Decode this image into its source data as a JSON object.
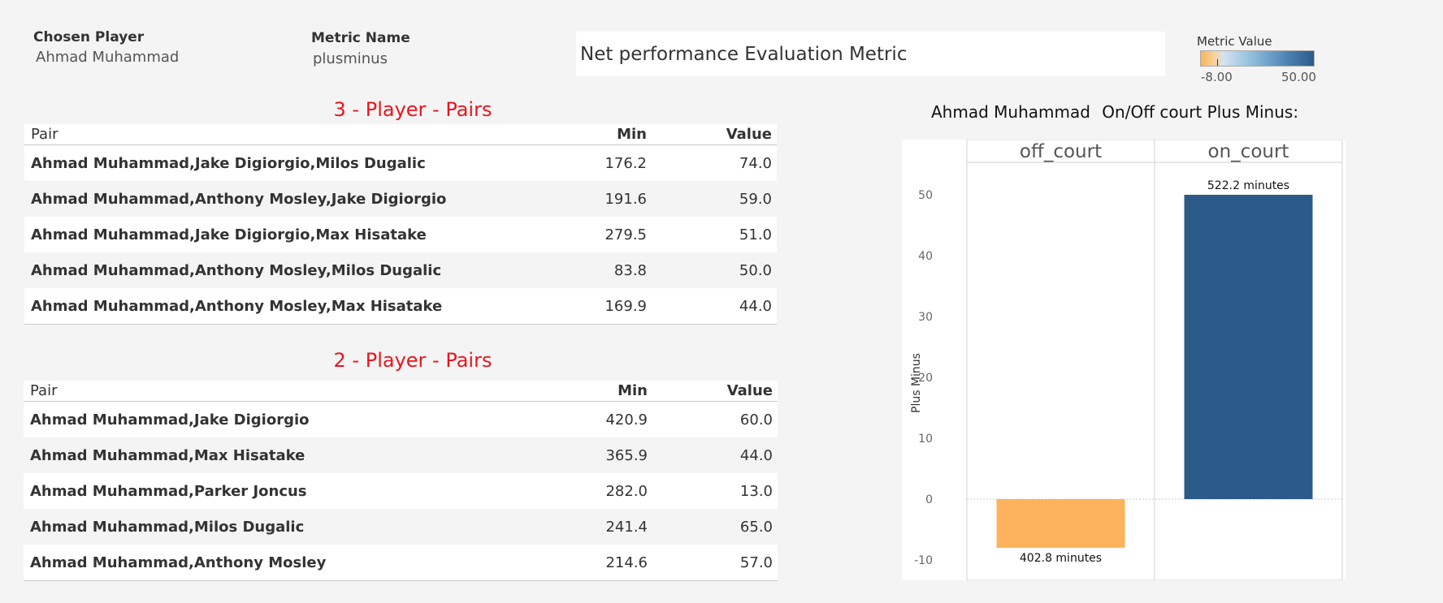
{
  "filters": {
    "chosen_player_label": "Chosen Player",
    "chosen_player_value": "Ahmad Muhammad",
    "metric_name_label": "Metric Name",
    "metric_name_value": "plusminus",
    "metric_description": "Net performance Evaluation Metric"
  },
  "legend": {
    "title": "Metric Value",
    "min": "-8.00",
    "max": "50.00",
    "colors": {
      "low": "#f9b45d",
      "high": "#2a5a8a"
    }
  },
  "three_player": {
    "title": "3 - Player - Pairs",
    "headers": {
      "pair": "Pair",
      "min": "Min",
      "value": "Value"
    },
    "rows": [
      {
        "pair": "Ahmad Muhammad,Jake Digiorgio,Milos Dugalic",
        "min": "176.2",
        "value": "74.0"
      },
      {
        "pair": "Ahmad Muhammad,Anthony Mosley,Jake Digiorgio",
        "min": "191.6",
        "value": "59.0"
      },
      {
        "pair": "Ahmad Muhammad,Jake Digiorgio,Max Hisatake",
        "min": "279.5",
        "value": "51.0"
      },
      {
        "pair": "Ahmad Muhammad,Anthony Mosley,Milos Dugalic",
        "min": "83.8",
        "value": "50.0"
      },
      {
        "pair": "Ahmad Muhammad,Anthony Mosley,Max Hisatake",
        "min": "169.9",
        "value": "44.0"
      }
    ]
  },
  "two_player": {
    "title": "2 - Player - Pairs",
    "headers": {
      "pair": "Pair",
      "min": "Min",
      "value": "Value"
    },
    "rows": [
      {
        "pair": "Ahmad Muhammad,Jake Digiorgio",
        "min": "420.9",
        "value": "60.0"
      },
      {
        "pair": "Ahmad Muhammad,Max Hisatake",
        "min": "365.9",
        "value": "44.0"
      },
      {
        "pair": "Ahmad Muhammad,Parker Joncus",
        "min": "282.0",
        "value": "13.0"
      },
      {
        "pair": "Ahmad Muhammad,Milos Dugalic",
        "min": "241.4",
        "value": "65.0"
      },
      {
        "pair": "Ahmad Muhammad,Anthony Mosley",
        "min": "214.6",
        "value": "57.0"
      }
    ]
  },
  "chart_title": {
    "player": "Ahmad Muhammad",
    "suffix": "On/Off court Plus Minus:"
  },
  "chart_data": {
    "type": "bar",
    "categories": [
      "off_court",
      "on_court"
    ],
    "values": [
      -8,
      50
    ],
    "labels": [
      "402.8 minutes",
      "522.2 minutes"
    ],
    "colors": [
      "#fdb35c",
      "#2b5a88"
    ],
    "ylabel": "Plus Minus",
    "ylim": [
      -10,
      50
    ],
    "yticks": [
      -10,
      0,
      10,
      20,
      30,
      40,
      50
    ],
    "grid": false
  }
}
